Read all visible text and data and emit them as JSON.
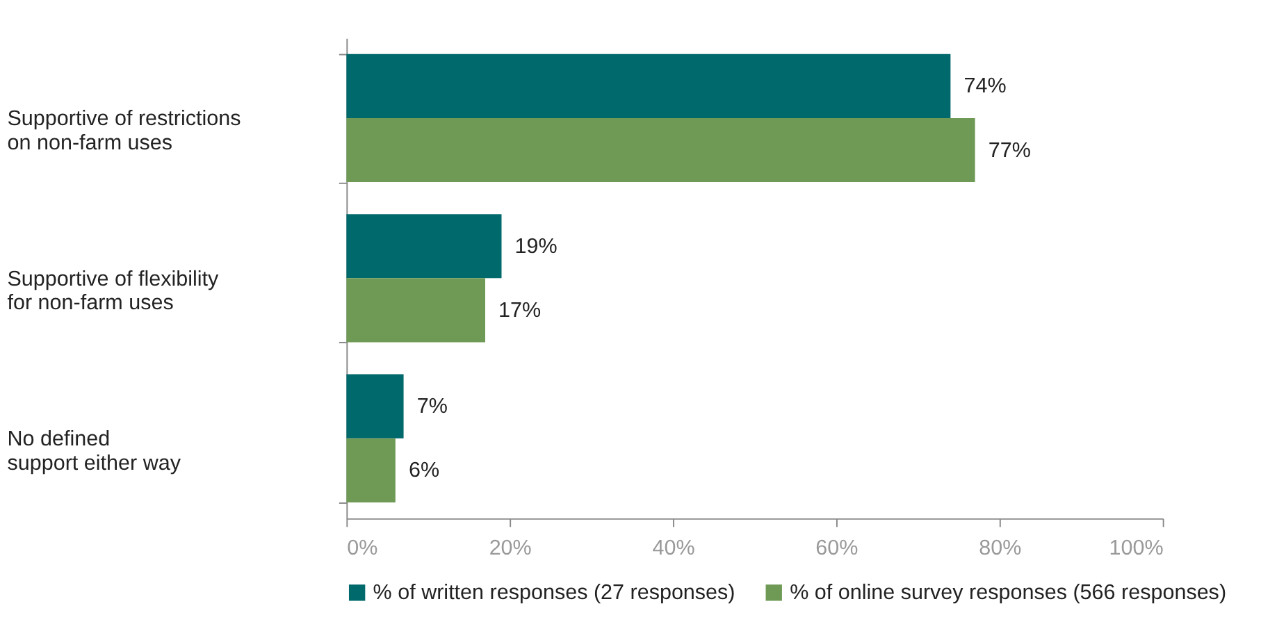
{
  "chart_data": {
    "type": "bar",
    "orientation": "horizontal",
    "categories": [
      "Supportive of restrictions on non-farm uses",
      "Supportive of flexibility for non-farm uses",
      "No defined support either way"
    ],
    "series": [
      {
        "name": "% of written responses (27 responses)",
        "color": "#00696b",
        "values": [
          74,
          19,
          7
        ],
        "value_labels": [
          "74%",
          "19%",
          "7%"
        ]
      },
      {
        "name": "% of online survey responses (566 responses)",
        "color": "#6f9a56",
        "values": [
          77,
          17,
          6
        ],
        "value_labels": [
          "77%",
          "17%",
          "6%"
        ]
      }
    ],
    "xlim": [
      0,
      100
    ],
    "xticks": [
      {
        "value": 0,
        "label": "0%"
      },
      {
        "value": 20,
        "label": "20%"
      },
      {
        "value": 40,
        "label": "40%"
      },
      {
        "value": 60,
        "label": "60%"
      },
      {
        "value": 80,
        "label": "80%"
      },
      {
        "value": 100,
        "label": "100%"
      }
    ],
    "grid": false,
    "legend": "bottom"
  }
}
